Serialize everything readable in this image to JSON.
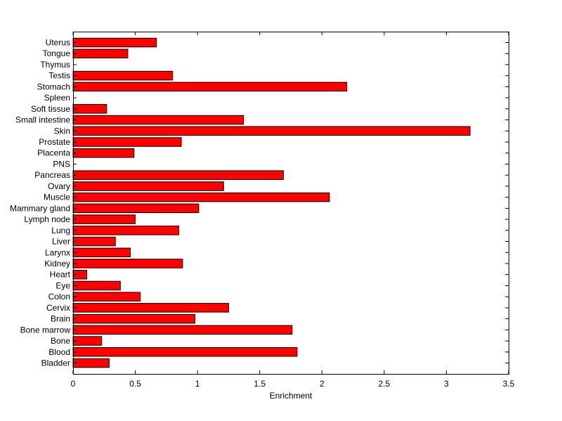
{
  "chart_data": {
    "type": "bar",
    "orientation": "horizontal",
    "xlabel": "Enrichment",
    "xlim": [
      0,
      3.5
    ],
    "xticks": [
      0,
      0.5,
      1,
      1.5,
      2,
      2.5,
      3,
      3.5
    ],
    "xtick_labels": [
      "0",
      "0.5",
      "1",
      "1.5",
      "2",
      "2.5",
      "3",
      "3.5"
    ],
    "grid": false,
    "bar_color": "#ff0000",
    "categories": [
      "Bladder",
      "Blood",
      "Bone",
      "Bone marrow",
      "Brain",
      "Cervix",
      "Colon",
      "Eye",
      "Heart",
      "Kidney",
      "Larynx",
      "Liver",
      "Lung",
      "Lymph node",
      "Mammary gland",
      "Muscle",
      "Ovary",
      "Pancreas",
      "PNS",
      "Placenta",
      "Prostate",
      "Skin",
      "Small intestine",
      "Soft tissue",
      "Spleen",
      "Stomach",
      "Testis",
      "Thymus",
      "Tongue",
      "Uterus"
    ],
    "values": [
      0.29,
      1.8,
      0.23,
      1.76,
      0.98,
      1.25,
      0.54,
      0.38,
      0.11,
      0.88,
      0.46,
      0.34,
      0.85,
      0.5,
      1.01,
      2.06,
      1.21,
      1.69,
      0,
      0.49,
      0.87,
      3.19,
      1.37,
      0.27,
      0,
      2.2,
      0.8,
      0,
      0.44,
      0.67
    ]
  }
}
